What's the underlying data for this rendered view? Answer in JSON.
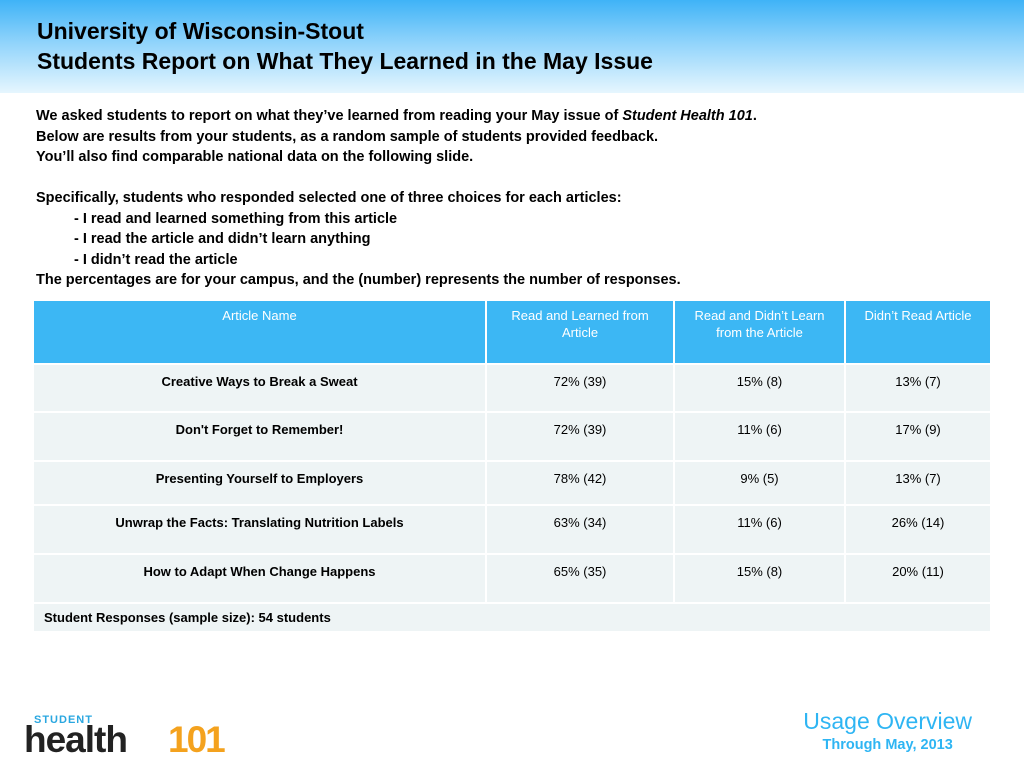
{
  "header": {
    "title_line1": "University of Wisconsin-Stout",
    "title_line2": "Students Report on What They Learned in the May Issue"
  },
  "intro": {
    "line1_pre": "We asked students to report on what they’ve learned from reading your May issue of ",
    "line1_em": "Student Health 101",
    "line1_post": ".",
    "line2": "Below are results from your students, as a random sample of students provided feedback.",
    "line3": "You’ll also find comparable national data on the following slide.",
    "line5": "Specifically, students who responded selected one of three choices for each articles:",
    "choice1": "- I read and learned something from this article",
    "choice2": "- I read the article and didn’t learn anything",
    "choice3": "- I didn’t read the article",
    "line9": "The percentages are for your campus, and the (number) represents the number of responses."
  },
  "table": {
    "headers": [
      "Article Name",
      "Read and Learned from Article",
      "Read and Didn’t Learn from the Article",
      "Didn’t Read Article"
    ],
    "rows": [
      {
        "name": "Creative Ways to Break a Sweat",
        "learned": "72% (39)",
        "not_learned": "15% (8)",
        "not_read": "13% (7)"
      },
      {
        "name": "Don't Forget to Remember!",
        "learned": "72% (39)",
        "not_learned": "11% (6)",
        "not_read": "17% (9)"
      },
      {
        "name": "Presenting Yourself to Employers",
        "learned": "78% (42)",
        "not_learned": "9% (5)",
        "not_read": "13% (7)"
      },
      {
        "name": "Unwrap the Facts: Translating Nutrition Labels",
        "learned": "63% (34)",
        "not_learned": "11% (6)",
        "not_read": "26% (14)"
      },
      {
        "name": "How to Adapt When Change Happens",
        "learned": "65% (35)",
        "not_learned": "15% (8)",
        "not_read": "20% (11)"
      }
    ],
    "footer": "Student Responses (sample size): 54 students"
  },
  "logo": {
    "student": "STUDENT",
    "health": "health",
    "number": "101"
  },
  "usage": {
    "title": "Usage Overview",
    "subtitle": "Through May, 2013"
  },
  "colors": {
    "header_blue": "#3fb3f7",
    "table_header": "#3cb7f4",
    "row_bg": "#eef4f5",
    "usage_blue": "#2eb5f3",
    "logo_orange": "#f4a21e"
  }
}
